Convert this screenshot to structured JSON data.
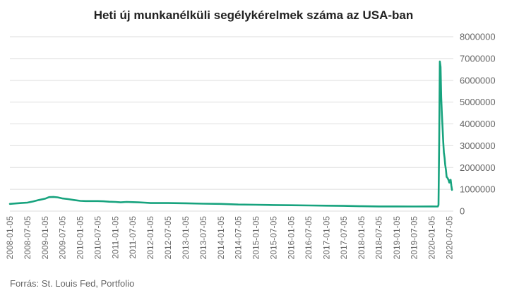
{
  "title": "Heti új munkanélküli segélykérelmek száma az USA-ban",
  "source": "Forrás: St. Louis Fed, Portfolio",
  "colors": {
    "line": "#17a37e",
    "grid": "#dddddd",
    "text": "#666666"
  },
  "chart_data": {
    "type": "line",
    "title": "Heti új munkanélküli segélykérelmek száma az USA-ban",
    "xlabel": "",
    "ylabel": "",
    "x_ticks": [
      "2008-01-05",
      "2008-07-05",
      "2009-01-05",
      "2009-07-05",
      "2010-01-05",
      "2010-07-05",
      "2011-01-05",
      "2011-07-05",
      "2012-01-05",
      "2012-07-05",
      "2013-01-05",
      "2013-07-05",
      "2014-01-05",
      "2014-07-05",
      "2015-01-05",
      "2015-07-05",
      "2016-01-05",
      "2016-07-05",
      "2017-01-05",
      "2017-07-05",
      "2018-01-05",
      "2018-07-05",
      "2019-01-05",
      "2019-07-05",
      "2020-01-05",
      "2020-07-05"
    ],
    "y_ticks": [
      "0",
      "1000000",
      "2000000",
      "3000000",
      "4000000",
      "5000000",
      "6000000",
      "7000000",
      "8000000"
    ],
    "ylim": [
      0,
      8000000
    ],
    "xlim": [
      "2008-01-05",
      "2020-08-15"
    ],
    "y_axis_position": "right",
    "grid": true,
    "legend": "none",
    "series": [
      {
        "points": [
          [
            "2008-01-05",
            330000
          ],
          [
            "2008-03-01",
            350000
          ],
          [
            "2008-05-01",
            370000
          ],
          [
            "2008-07-05",
            390000
          ],
          [
            "2008-09-01",
            440000
          ],
          [
            "2008-11-01",
            510000
          ],
          [
            "2009-01-05",
            570000
          ],
          [
            "2009-02-15",
            640000
          ],
          [
            "2009-04-01",
            650000
          ],
          [
            "2009-05-15",
            630000
          ],
          [
            "2009-07-05",
            580000
          ],
          [
            "2009-09-01",
            550000
          ],
          [
            "2009-11-01",
            510000
          ],
          [
            "2010-01-05",
            470000
          ],
          [
            "2010-03-01",
            460000
          ],
          [
            "2010-05-01",
            460000
          ],
          [
            "2010-07-05",
            460000
          ],
          [
            "2010-09-01",
            450000
          ],
          [
            "2010-11-01",
            430000
          ],
          [
            "2011-01-05",
            420000
          ],
          [
            "2011-03-01",
            400000
          ],
          [
            "2011-05-01",
            420000
          ],
          [
            "2011-07-05",
            410000
          ],
          [
            "2011-09-01",
            400000
          ],
          [
            "2011-11-01",
            390000
          ],
          [
            "2012-01-05",
            370000
          ],
          [
            "2012-07-05",
            370000
          ],
          [
            "2013-01-05",
            360000
          ],
          [
            "2013-07-05",
            340000
          ],
          [
            "2014-01-05",
            330000
          ],
          [
            "2014-07-05",
            300000
          ],
          [
            "2015-01-05",
            290000
          ],
          [
            "2015-07-05",
            280000
          ],
          [
            "2016-01-05",
            270000
          ],
          [
            "2016-07-05",
            260000
          ],
          [
            "2017-01-05",
            250000
          ],
          [
            "2017-07-05",
            240000
          ],
          [
            "2018-01-05",
            225000
          ],
          [
            "2018-07-05",
            215000
          ],
          [
            "2019-01-05",
            215000
          ],
          [
            "2019-07-05",
            212000
          ],
          [
            "2020-01-05",
            215000
          ],
          [
            "2020-03-07",
            211000
          ],
          [
            "2020-03-14",
            282000
          ],
          [
            "2020-03-21",
            3307000
          ],
          [
            "2020-03-28",
            6867000
          ],
          [
            "2020-04-04",
            6615000
          ],
          [
            "2020-04-11",
            5237000
          ],
          [
            "2020-04-18",
            4442000
          ],
          [
            "2020-04-25",
            3867000
          ],
          [
            "2020-05-02",
            3176000
          ],
          [
            "2020-05-09",
            2687000
          ],
          [
            "2020-05-16",
            2446000
          ],
          [
            "2020-05-23",
            2123000
          ],
          [
            "2020-05-30",
            1897000
          ],
          [
            "2020-06-06",
            1566000
          ],
          [
            "2020-06-13",
            1540000
          ],
          [
            "2020-06-20",
            1482000
          ],
          [
            "2020-06-27",
            1413000
          ],
          [
            "2020-07-04",
            1310000
          ],
          [
            "2020-07-11",
            1422000
          ],
          [
            "2020-07-18",
            1434000
          ],
          [
            "2020-07-25",
            1186000
          ],
          [
            "2020-08-01",
            971000
          ]
        ]
      }
    ]
  }
}
